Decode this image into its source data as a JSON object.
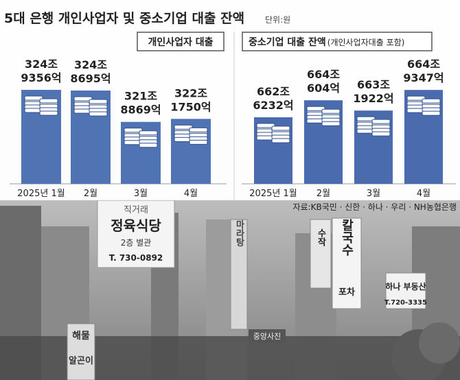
{
  "title": "5대 은행 개인사업자 및 중소기업 대출 잔액",
  "unit": "단위:원",
  "source": "자료:KB국민 · 신한 · 하나 · 우리 · NH농협은행",
  "background_signs": [
    "직거래",
    "정육식당",
    "2층 별관",
    "T. 730-0892",
    "칼국수",
    "포차",
    "하나 부동산",
    "T.720-3335",
    "중앙사진",
    "수작",
    "마라탕",
    "해물",
    "알곤이"
  ],
  "colors": {
    "bar_left": "#4f73b3",
    "bar_right": "#4a6cae",
    "label_box_border": "#555555",
    "text": "#222222"
  },
  "chart_data": [
    {
      "type": "bar",
      "title": "개인사업자 대출",
      "categories": [
        "2025년 1월",
        "2월",
        "3월",
        "4월"
      ],
      "values": [
        324.9356,
        324.8695,
        321.8869,
        322.175
      ],
      "value_labels": [
        [
          "324조",
          "9356억"
        ],
        [
          "324조",
          "8695억"
        ],
        [
          "321조",
          "8869억"
        ],
        [
          "322조",
          "1750억"
        ]
      ],
      "unit": "조원"
    },
    {
      "type": "bar",
      "title": "중소기업 대출 잔액",
      "title_note": "(개인사업자대출 포함)",
      "categories": [
        "2025년 1월",
        "2월",
        "3월",
        "4월"
      ],
      "values": [
        662.6232,
        664.0604,
        663.1922,
        664.9347
      ],
      "value_labels": [
        [
          "662조",
          "6232억"
        ],
        [
          "664조",
          "604억"
        ],
        [
          "663조",
          "1922억"
        ],
        [
          "664조",
          "9347억"
        ]
      ],
      "unit": "조원"
    }
  ]
}
